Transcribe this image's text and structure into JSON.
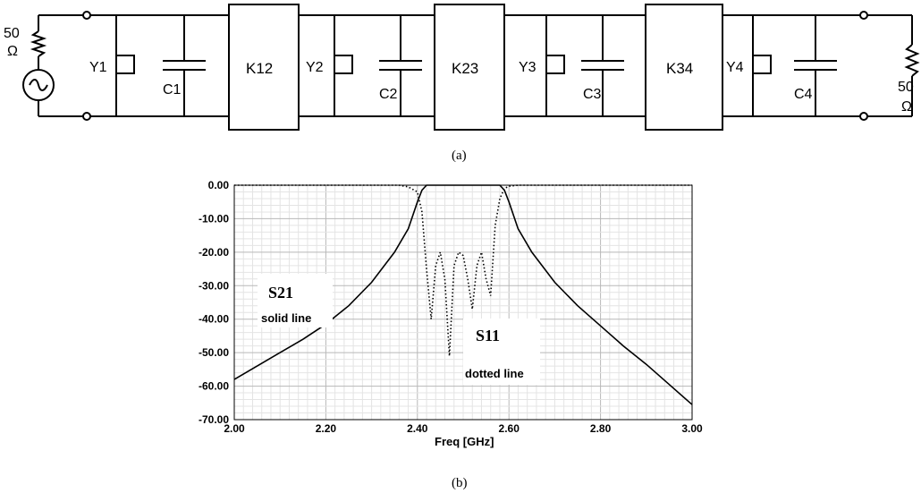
{
  "circuit": {
    "source_resistor": {
      "value": "50",
      "unit": "Ω"
    },
    "load_resistor": {
      "value": "50",
      "unit": "Ω"
    },
    "sections": [
      {
        "y": "Y1",
        "c": "C1"
      },
      {
        "y": "Y2",
        "c": "C2"
      },
      {
        "y": "Y3",
        "c": "C3"
      },
      {
        "y": "Y4",
        "c": "C4"
      }
    ],
    "inverters": [
      "K12",
      "K23",
      "K34"
    ],
    "caption": "(a)"
  },
  "plot": {
    "caption": "(b)",
    "annotations": {
      "s21_title": "S21",
      "s21_note": "solid line",
      "s11_title": "S11",
      "s11_note": "dotted line"
    }
  },
  "chart_data": {
    "type": "line",
    "xlabel": "Freq [GHz]",
    "ylabel": "",
    "xlim": [
      2.0,
      3.0
    ],
    "ylim": [
      -70,
      0
    ],
    "x_ticks": [
      "2.00",
      "2.20",
      "2.40",
      "2.60",
      "2.80",
      "3.00"
    ],
    "y_ticks": [
      "0.00",
      "-10.00",
      "-20.00",
      "-30.00",
      "-40.00",
      "-50.00",
      "-60.00",
      "-70.00"
    ],
    "grid": true,
    "series": [
      {
        "name": "S21",
        "style": "solid",
        "color": "#000000",
        "x": [
          2.0,
          2.05,
          2.1,
          2.15,
          2.2,
          2.25,
          2.3,
          2.35,
          2.38,
          2.4,
          2.41,
          2.42,
          2.45,
          2.5,
          2.55,
          2.58,
          2.59,
          2.6,
          2.62,
          2.65,
          2.7,
          2.75,
          2.8,
          2.85,
          2.9,
          2.95,
          3.0
        ],
        "y": [
          -58,
          -54,
          -50,
          -46,
          -41.5,
          -36,
          -29,
          -20,
          -13,
          -5,
          -1.5,
          0,
          0,
          0,
          0,
          0,
          -1.5,
          -5,
          -13,
          -20,
          -29,
          -36,
          -42,
          -48,
          -53.5,
          -59.5,
          -65.5
        ]
      },
      {
        "name": "S11",
        "style": "dotted",
        "color": "#000000",
        "x": [
          2.0,
          2.36,
          2.38,
          2.4,
          2.41,
          2.42,
          2.43,
          2.44,
          2.45,
          2.46,
          2.47,
          2.48,
          2.49,
          2.5,
          2.51,
          2.52,
          2.53,
          2.54,
          2.55,
          2.56,
          2.57,
          2.58,
          2.59,
          2.6,
          2.62,
          2.64,
          3.0
        ],
        "y": [
          0,
          0,
          -0.5,
          -2,
          -8,
          -25,
          -40,
          -24,
          -20,
          -28,
          -51,
          -24,
          -20,
          -21,
          -28,
          -37,
          -24,
          -20,
          -28,
          -33,
          -12,
          -4,
          -1,
          -0.3,
          0,
          0,
          0
        ]
      }
    ]
  }
}
